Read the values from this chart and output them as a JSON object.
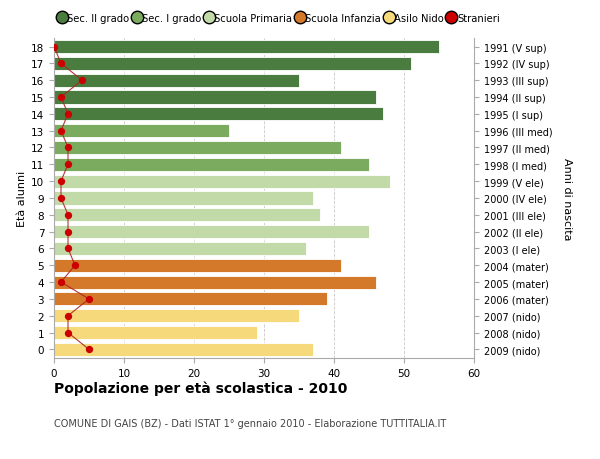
{
  "ages": [
    18,
    17,
    16,
    15,
    14,
    13,
    12,
    11,
    10,
    9,
    8,
    7,
    6,
    5,
    4,
    3,
    2,
    1,
    0
  ],
  "bar_values": [
    55,
    51,
    35,
    46,
    47,
    25,
    41,
    45,
    48,
    37,
    38,
    45,
    36,
    41,
    46,
    39,
    35,
    29,
    37
  ],
  "bar_colors": [
    "#4a7c3f",
    "#4a7c3f",
    "#4a7c3f",
    "#4a7c3f",
    "#4a7c3f",
    "#7aab5e",
    "#7aab5e",
    "#7aab5e",
    "#c2d9a8",
    "#c2d9a8",
    "#c2d9a8",
    "#c2d9a8",
    "#c2d9a8",
    "#d4782a",
    "#d4782a",
    "#d4782a",
    "#f5d97a",
    "#f5d97a",
    "#f5d97a"
  ],
  "right_labels": [
    "1991 (V sup)",
    "1992 (IV sup)",
    "1993 (III sup)",
    "1994 (II sup)",
    "1995 (I sup)",
    "1996 (III med)",
    "1997 (II med)",
    "1998 (I med)",
    "1999 (V ele)",
    "2000 (IV ele)",
    "2001 (III ele)",
    "2002 (II ele)",
    "2003 (I ele)",
    "2004 (mater)",
    "2005 (mater)",
    "2006 (mater)",
    "2007 (nido)",
    "2008 (nido)",
    "2009 (nido)"
  ],
  "stranieri_values": [
    0,
    1,
    4,
    1,
    2,
    1,
    2,
    2,
    1,
    1,
    2,
    2,
    2,
    3,
    1,
    5,
    2,
    2,
    5
  ],
  "legend_labels": [
    "Sec. II grado",
    "Sec. I grado",
    "Scuola Primaria",
    "Scuola Infanzia",
    "Asilo Nido",
    "Stranieri"
  ],
  "legend_colors": [
    "#4a7c3f",
    "#7aab5e",
    "#c2d9a8",
    "#d4782a",
    "#f5d97a",
    "#cc0000"
  ],
  "title": "Popolazione per età scolastica - 2010",
  "subtitle": "COMUNE DI GAIS (BZ) - Dati ISTAT 1° gennaio 2010 - Elaborazione TUTTITALIA.IT",
  "ylabel_left": "Età alunni",
  "ylabel_right": "Anni di nascita",
  "xlim": [
    0,
    60
  ],
  "background_color": "#ffffff",
  "bar_height": 0.78,
  "grid_color": "#c8c8c8"
}
